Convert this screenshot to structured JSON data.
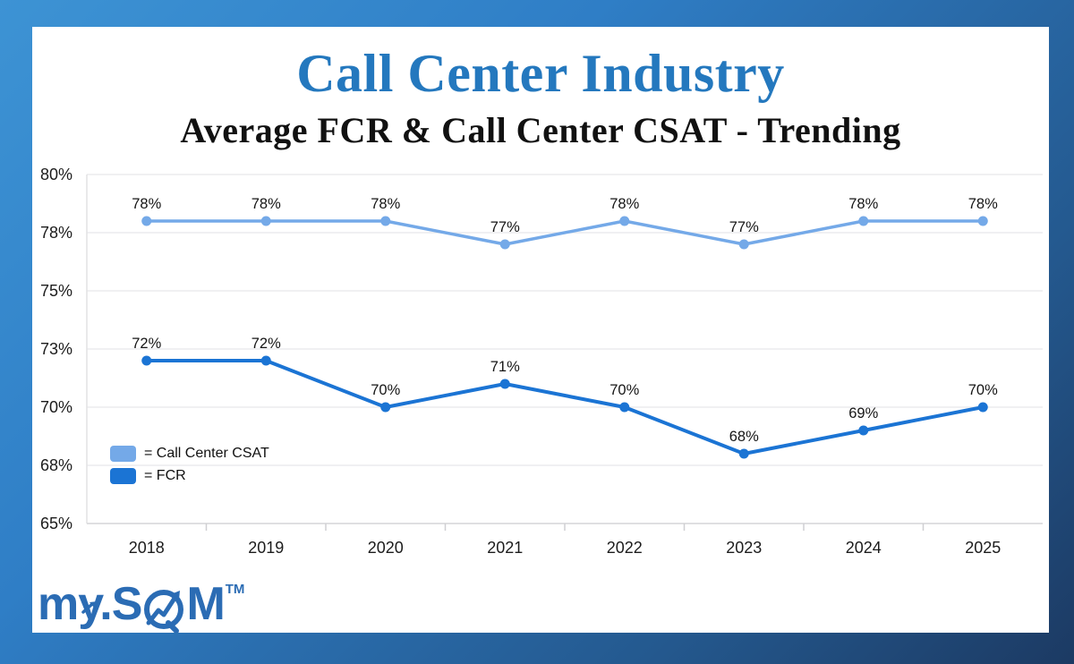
{
  "header": {},
  "chart_data": {
    "type": "line",
    "title": "Call Center Industry",
    "subtitle": "Average FCR & Call Center CSAT - Trending",
    "title_color": "#2478be",
    "categories": [
      "2018",
      "2019",
      "2020",
      "2021",
      "2022",
      "2023",
      "2024",
      "2025"
    ],
    "series": [
      {
        "name": "Call Center CSAT",
        "color": "#74a9e8",
        "line_width": 3.5,
        "values": [
          78,
          78,
          78,
          77,
          78,
          77,
          78,
          78
        ],
        "labels": [
          "78%",
          "78%",
          "78%",
          "77%",
          "78%",
          "77%",
          "78%",
          "78%"
        ]
      },
      {
        "name": "FCR",
        "color": "#1b74d4",
        "line_width": 4,
        "values": [
          72,
          72,
          70,
          71,
          70,
          68,
          69,
          70
        ],
        "labels": [
          "72%",
          "72%",
          "70%",
          "71%",
          "70%",
          "68%",
          "69%",
          "70%"
        ]
      }
    ],
    "ylim": [
      65,
      80
    ],
    "y_ticks": [
      {
        "value": 80,
        "label": "80%"
      },
      {
        "value": 77.5,
        "label": "78%"
      },
      {
        "value": 75,
        "label": "75%"
      },
      {
        "value": 72.5,
        "label": "73%"
      },
      {
        "value": 70,
        "label": "70%"
      },
      {
        "value": 67.5,
        "label": "68%"
      },
      {
        "value": 65,
        "label": "65%"
      }
    ],
    "grid": true,
    "legend_position": "inside-bottom-left",
    "colors": {
      "gridline": "#ececee",
      "axis_line": "#d8d8da",
      "left_axis_line": "#e2e2e4",
      "tick_mark": "#cfcfd2",
      "tick_text": "#1c1c1c",
      "point_label_text": "#161616"
    }
  },
  "legend": {
    "items": [
      {
        "label": "= Call Center CSAT"
      },
      {
        "label": "= FCR"
      }
    ]
  },
  "logo": {
    "part1": "my.S",
    "part2": "M",
    "trademark": "TM",
    "color": "#2b6cb4"
  },
  "frame": {
    "gradient_start": "#3d93d4",
    "gradient_end": "#1c3a63",
    "card_background": "#ffffff"
  }
}
